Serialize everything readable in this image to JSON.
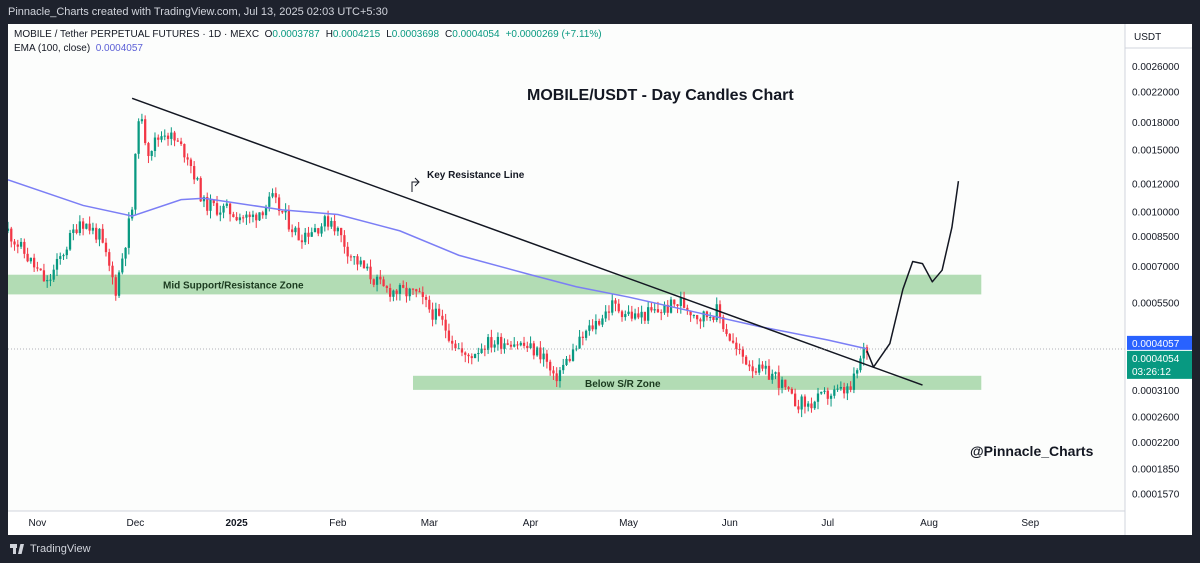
{
  "header": {
    "credit": "Pinnacle_Charts created with TradingView.com, Jul 13, 2025 02:03 UTC+5:30"
  },
  "footer": {
    "brand": "TradingView"
  },
  "legend": {
    "symbol": "MOBILE / Tether PERPETUAL FUTURES · 1D · MEXC",
    "open_label": "O",
    "open": "0.0003787",
    "high_label": "H",
    "high": "0.0004215",
    "low_label": "L",
    "low": "0.0003698",
    "close_label": "C",
    "close": "0.0004054",
    "change": "+0.0000269 (+7.11%)",
    "ema_label": "EMA (100, close)",
    "ema": "0.0004057"
  },
  "colors": {
    "up": "#089981",
    "down": "#f23645",
    "ema": "#7b7ef5",
    "zone": "#a5d6a7",
    "last_price": "#089981",
    "ema_tag": "#2962ff"
  },
  "chart_data": {
    "type": "candlestick",
    "title": "MOBILE/USDT - Day Candles Chart",
    "watermark": "@Pinnacle_Charts",
    "currency": "USDT",
    "scale": "log",
    "ylim": [
      0.00014,
      0.003
    ],
    "xlim": [
      "2024-10-23",
      "2025-09-30"
    ],
    "y_ticks": [
      "0.0026000",
      "0.0022000",
      "0.0018000",
      "0.0015000",
      "0.0012000",
      "0.0010000",
      "0.0008500",
      "0.0007000",
      "0.0005500",
      "0.0003100",
      "0.0002600",
      "0.0002200",
      "0.0001850",
      "0.0001570"
    ],
    "x_ticks": [
      {
        "date": "2024-11-01",
        "label": "Nov"
      },
      {
        "date": "2024-12-01",
        "label": "Dec"
      },
      {
        "date": "2025-01-01",
        "label": "2025"
      },
      {
        "date": "2025-02-01",
        "label": "Feb"
      },
      {
        "date": "2025-03-01",
        "label": "Mar"
      },
      {
        "date": "2025-04-01",
        "label": "Apr"
      },
      {
        "date": "2025-05-01",
        "label": "May"
      },
      {
        "date": "2025-06-01",
        "label": "Jun"
      },
      {
        "date": "2025-07-01",
        "label": "Jul"
      },
      {
        "date": "2025-08-01",
        "label": "Aug"
      },
      {
        "date": "2025-09-01",
        "label": "Sep"
      }
    ],
    "price_path": [
      [
        "2024-10-23",
        0.00088
      ],
      [
        "2024-11-04",
        0.00062
      ],
      [
        "2024-11-14",
        0.00095
      ],
      [
        "2024-11-20",
        0.00085
      ],
      [
        "2024-11-25",
        0.0006
      ],
      [
        "2024-11-30",
        0.00102
      ],
      [
        "2024-12-02",
        0.0019
      ],
      [
        "2024-12-05",
        0.0015
      ],
      [
        "2024-12-10",
        0.0017
      ],
      [
        "2024-12-17",
        0.00145
      ],
      [
        "2024-12-22",
        0.00105
      ],
      [
        "2024-12-30",
        0.001
      ],
      [
        "2025-01-05",
        0.00095
      ],
      [
        "2025-01-12",
        0.00108
      ],
      [
        "2025-01-20",
        0.00085
      ],
      [
        "2025-01-30",
        0.00095
      ],
      [
        "2025-02-05",
        0.00075
      ],
      [
        "2025-02-15",
        0.0006
      ],
      [
        "2025-02-25",
        0.00058
      ],
      [
        "2025-03-05",
        0.00048
      ],
      [
        "2025-03-12",
        0.00038
      ],
      [
        "2025-03-18",
        0.00042
      ],
      [
        "2025-03-26",
        0.00043
      ],
      [
        "2025-04-05",
        0.00039
      ],
      [
        "2025-04-08",
        0.00033
      ],
      [
        "2025-04-18",
        0.00045
      ],
      [
        "2025-04-26",
        0.00054
      ],
      [
        "2025-05-03",
        0.0005
      ],
      [
        "2025-05-10",
        0.00052
      ],
      [
        "2025-05-17",
        0.00055
      ],
      [
        "2025-05-23",
        0.0005
      ],
      [
        "2025-05-28",
        0.00052
      ],
      [
        "2025-06-03",
        0.0004
      ],
      [
        "2025-06-10",
        0.00035
      ],
      [
        "2025-06-15",
        0.00034
      ],
      [
        "2025-06-20",
        0.00029
      ],
      [
        "2025-06-25",
        0.00028
      ],
      [
        "2025-07-01",
        0.0003
      ],
      [
        "2025-07-08",
        0.00031
      ],
      [
        "2025-07-12",
        0.0004
      ],
      [
        "2025-07-13",
        0.0004054
      ]
    ],
    "series": [
      {
        "name": "EMA (100, close)",
        "points": [
          [
            "2024-10-23",
            0.00123
          ],
          [
            "2024-11-15",
            0.00104
          ],
          [
            "2024-11-30",
            0.00097
          ],
          [
            "2024-12-15",
            0.00108
          ],
          [
            "2024-12-22",
            0.00109
          ],
          [
            "2025-01-15",
            0.00101
          ],
          [
            "2025-02-01",
            0.00098
          ],
          [
            "2025-02-20",
            0.00088
          ],
          [
            "2025-03-10",
            0.00075
          ],
          [
            "2025-04-01",
            0.00066
          ],
          [
            "2025-04-15",
            0.00061
          ],
          [
            "2025-05-01",
            0.00057
          ],
          [
            "2025-05-20",
            0.00052
          ],
          [
            "2025-06-10",
            0.00047
          ],
          [
            "2025-07-01",
            0.00043
          ],
          [
            "2025-07-13",
            0.0004057
          ]
        ]
      }
    ],
    "trendline": {
      "label": "Key Resistance Line",
      "points": [
        [
          "2024-11-30",
          0.0021
        ],
        [
          "2025-07-30",
          0.00032
        ]
      ]
    },
    "zones": [
      {
        "label": "Mid Support/Resistance Zone",
        "from": "2024-10-23",
        "to": "2025-08-17",
        "low": 0.00058,
        "high": 0.00066
      },
      {
        "label": "Below S/R Zone",
        "from": "2025-02-24",
        "to": "2025-08-17",
        "low": 0.00031,
        "high": 0.00034
      }
    ],
    "projection": [
      [
        "2025-07-13",
        0.0004
      ],
      [
        "2025-07-15",
        0.00036
      ],
      [
        "2025-07-20",
        0.00042
      ],
      [
        "2025-07-24",
        0.0006
      ],
      [
        "2025-07-27",
        0.00072
      ],
      [
        "2025-07-30",
        0.00071
      ],
      [
        "2025-08-02",
        0.00063
      ],
      [
        "2025-08-05",
        0.00068
      ],
      [
        "2025-08-08",
        0.0009
      ],
      [
        "2025-08-10",
        0.00122
      ]
    ],
    "last_price": {
      "value": "0.0004054",
      "countdown": "03:26:12"
    },
    "ema_value": {
      "value": "0.0004057"
    }
  }
}
